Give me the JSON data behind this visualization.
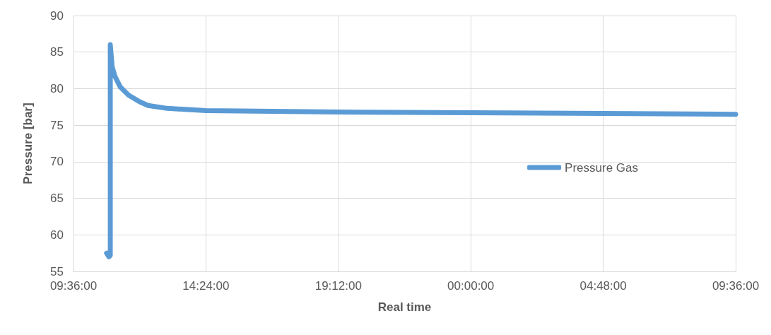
{
  "chart_data": {
    "type": "line",
    "xlabel": "Real time",
    "ylabel": "Pressure [bar]",
    "xlim": [
      "--01-01T09:36",
      "--01-02T09:36"
    ],
    "xticks": [
      {
        "value": "--01-01T09:36",
        "label": "09:36:00"
      },
      {
        "value": "--01-01T14:24",
        "label": "14:24:00"
      },
      {
        "value": "--01-01T19:12",
        "label": "19:12:00"
      },
      {
        "value": "--01-02T00:00",
        "label": "00:00:00"
      },
      {
        "value": "--01-02T04:48",
        "label": "04:48:00"
      },
      {
        "value": "--01-02T09:36",
        "label": "09:36:00"
      }
    ],
    "ylim": [
      55,
      90
    ],
    "yticks": [
      55,
      60,
      65,
      70,
      75,
      80,
      85,
      90
    ],
    "grid": true,
    "legend": "right",
    "marker": "none",
    "line_style": "solid",
    "x": [
      "--01-01T10:48",
      "--01-01T10:53",
      "--01-01T10:56",
      "--01-01T10:56",
      "--01-01T11:00",
      "--01-01T11:06",
      "--01-01T11:18",
      "--01-01T11:36",
      "--01-01T12:00",
      "--01-01T12:18",
      "--01-01T13:00",
      "--01-01T14:24",
      "--01-01T16:48",
      "--01-01T19:12",
      "--01-02T00:00",
      "--01-02T04:48",
      "--01-02T09:36"
    ],
    "series": [
      {
        "name": "Pressure Gas",
        "color": "#5b9bd5",
        "values": [
          57.5,
          57,
          57.2,
          86,
          83,
          81.7,
          80.2,
          79.1,
          78.2,
          77.7,
          77.3,
          77.0,
          76.9,
          76.8,
          76.7,
          76.6,
          76.5
        ]
      }
    ]
  }
}
